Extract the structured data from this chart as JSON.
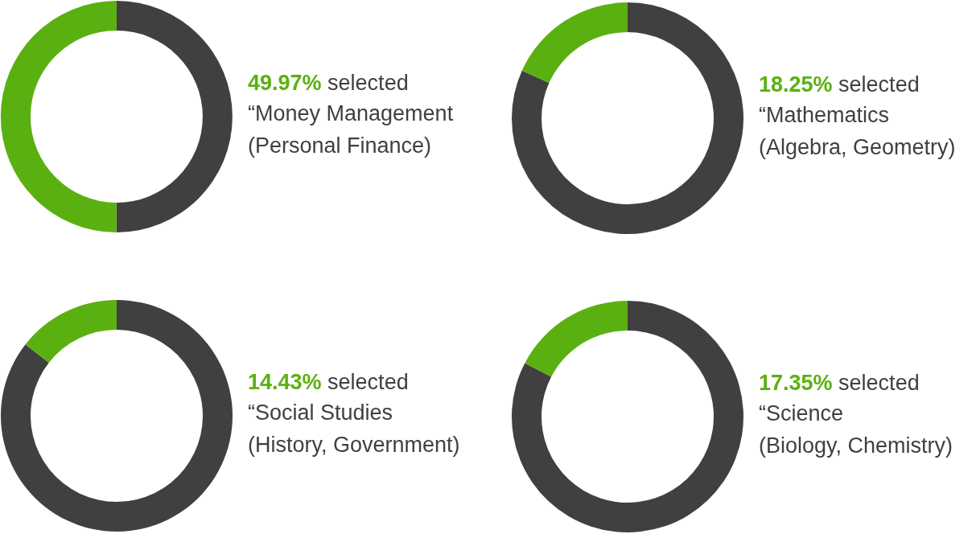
{
  "chart_data": [
    {
      "type": "donut",
      "title": "“Money Management",
      "subtitle": "(Personal Finance)",
      "annotations": [
        "49.97%",
        "selected"
      ],
      "categories": [
        null,
        null
      ],
      "values": [
        50.03,
        49.97
      ],
      "colors": [
        "#404040",
        "#5bb011"
      ]
    },
    {
      "type": "donut",
      "title": "“Mathematics",
      "subtitle": "(Algebra, Geometry)",
      "annotations": [
        "18.25%",
        "selected"
      ],
      "categories": [
        null,
        null
      ],
      "values": [
        81.75,
        18.25
      ],
      "colors": [
        "#404040",
        "#5bb011"
      ]
    },
    {
      "type": "donut",
      "title": "“Social Studies",
      "subtitle": "(History, Government)",
      "annotations": [
        "14.43%",
        "selected"
      ],
      "categories": [
        null,
        null
      ],
      "values": [
        85.57,
        14.43
      ],
      "colors": [
        "#404040",
        "#5bb011"
      ]
    },
    {
      "type": "donut",
      "title": "“Science",
      "subtitle": "(Biology, Chemistry)",
      "annotations": [
        "17.35%",
        "selected"
      ],
      "categories": [
        null,
        null
      ],
      "values": [
        82.65,
        17.35
      ],
      "colors": [
        "#404040",
        "#5bb011"
      ]
    }
  ]
}
